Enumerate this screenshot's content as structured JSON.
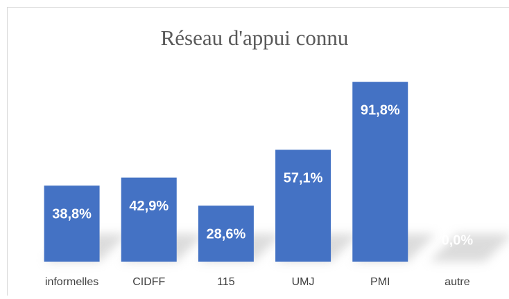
{
  "chart_data": {
    "type": "bar",
    "title": "Réseau d'appui connu",
    "categories": [
      "informelles",
      "CIDFF",
      "115",
      "UMJ",
      "PMI",
      "autre"
    ],
    "values": [
      38.8,
      42.9,
      28.6,
      57.1,
      91.8,
      0
    ],
    "value_labels": [
      "38,8%",
      "42,9%",
      "28,6%",
      "57,1%",
      "91,8%",
      "0,0%"
    ],
    "color": "#4472c4",
    "ylim": [
      0,
      100
    ]
  }
}
